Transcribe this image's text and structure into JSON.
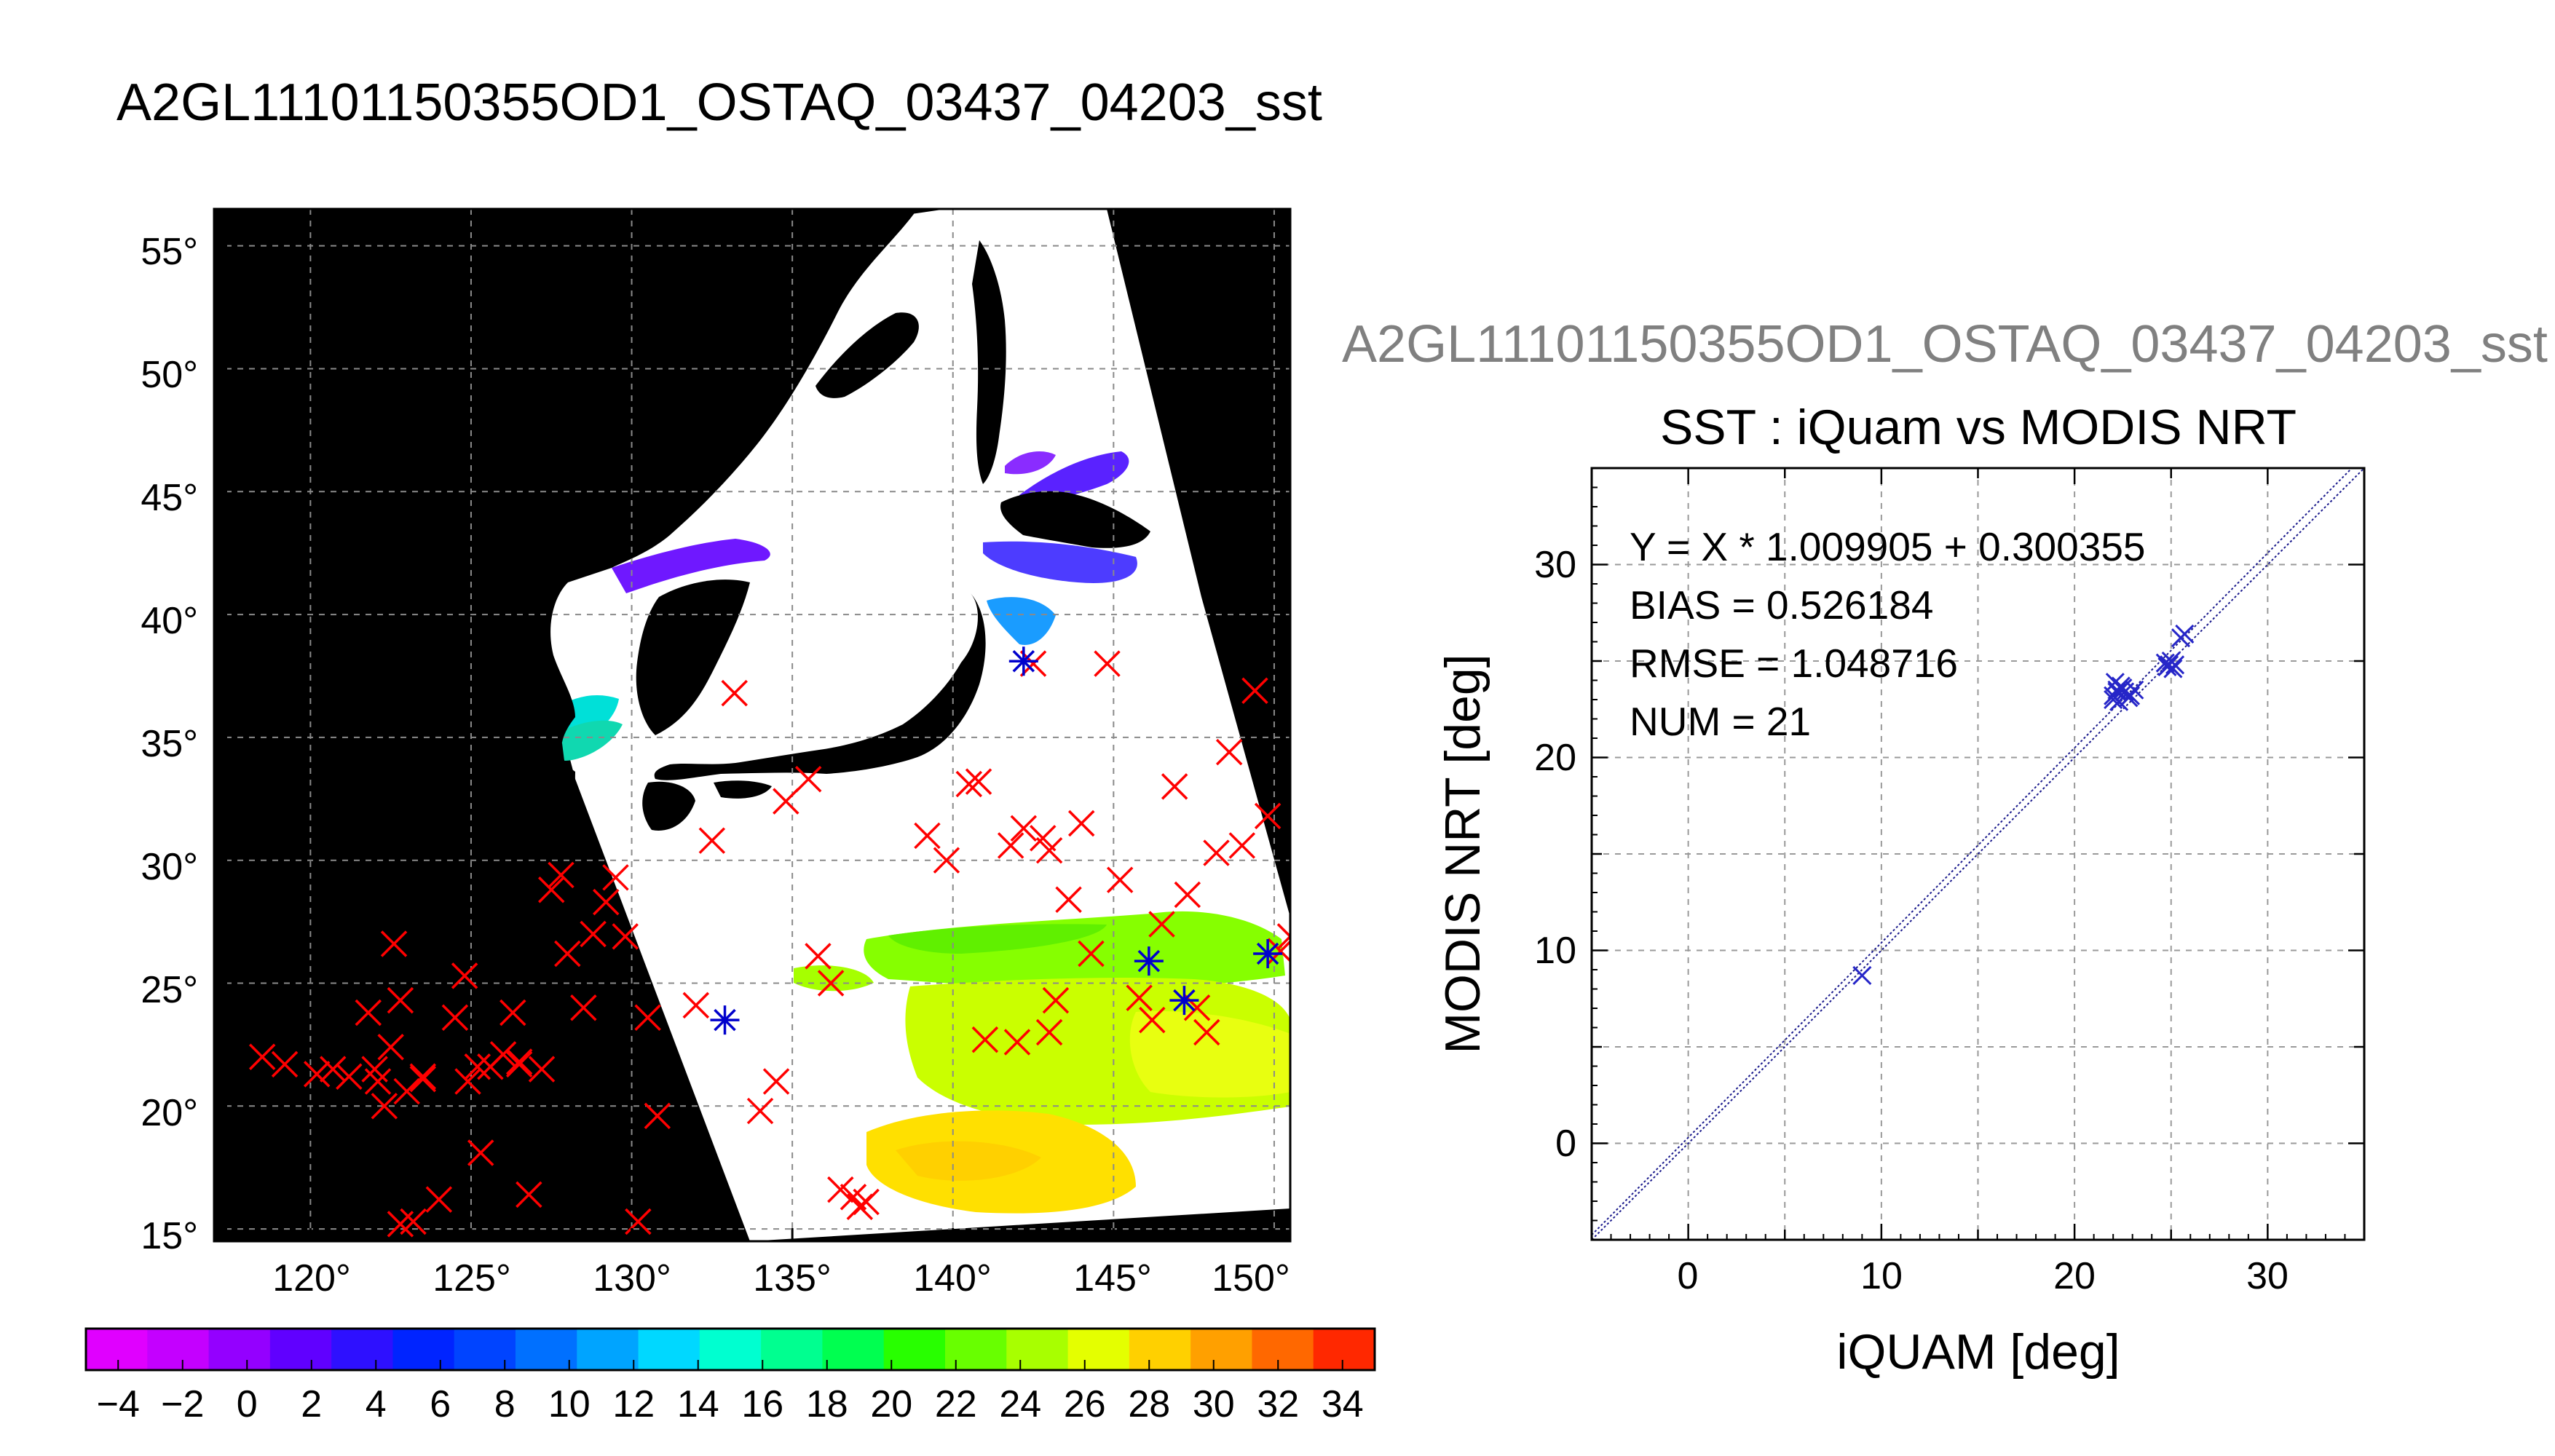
{
  "page_title": "A2GL11101150355OD1_OSTAQ_03437_04203_sst",
  "map": {
    "lat_ticks": [
      "55°",
      "50°",
      "45°",
      "40°",
      "35°",
      "30°",
      "25°",
      "20°",
      "15°"
    ],
    "lon_ticks": [
      "120°",
      "125°",
      "130°",
      "135°",
      "140°",
      "145°",
      "150°"
    ],
    "lat_range": [
      14.5,
      56.5
    ],
    "lon_range": [
      117,
      150.5
    ],
    "colorbar": {
      "tick_labels": [
        "−4",
        "−2",
        "0",
        "2",
        "4",
        "6",
        "8",
        "10",
        "12",
        "14",
        "16",
        "18",
        "20",
        "22",
        "24",
        "26",
        "28",
        "30",
        "32",
        "34"
      ],
      "range": [
        -5,
        35
      ],
      "colors": [
        "#e000ff",
        "#c400ff",
        "#9400ff",
        "#6000ff",
        "#2e10ff",
        "#0024ff",
        "#0044ff",
        "#0070ff",
        "#00a4ff",
        "#00d8ff",
        "#00ffd0",
        "#00ff90",
        "#00ff50",
        "#28ff00",
        "#68ff00",
        "#a8ff00",
        "#e4ff00",
        "#ffd000",
        "#ffa000",
        "#ff6800",
        "#ff2800"
      ]
    },
    "colors": {
      "land": "#000000",
      "cloud": "#ffffff",
      "marker_iquam": "#ff0000",
      "marker_matched": "#0000cc"
    }
  },
  "scatter": {
    "suptitle": "A2GL11101150355OD1_OSTAQ_03437_04203_sst",
    "title": "SST : iQuam vs MODIS NRT",
    "stats": [
      "Y = X * 1.009905 + 0.300355",
      "BIAS = 0.526184",
      "RMSE = 1.048716",
      "NUM = 21"
    ],
    "xlabel": "iQUAM [deg]",
    "ylabel": "MODIS NRT [deg]",
    "x_ticks": [
      "0",
      "10",
      "20",
      "30"
    ],
    "y_ticks": [
      "0",
      "10",
      "20",
      "30"
    ]
  },
  "chart_data": [
    {
      "type": "scatter",
      "title": "SST : iQuam vs MODIS NRT",
      "xlabel": "iQUAM [deg]",
      "ylabel": "MODIS NRT [deg]",
      "xlim": [
        -5,
        35
      ],
      "ylim": [
        -5,
        35
      ],
      "grid": true,
      "series": [
        {
          "x": [
            9.0,
            22.0,
            22.2,
            22.4,
            22.1,
            22.6,
            22.3,
            22.0,
            22.5,
            23.1,
            22.9,
            24.8,
            25.0,
            24.9,
            25.1,
            25.7,
            22.2,
            22.8,
            24.7,
            25.2,
            25.5
          ],
          "y": [
            8.7,
            23.2,
            23.5,
            23.7,
            23.9,
            23.4,
            22.9,
            23.0,
            23.6,
            23.5,
            23.2,
            24.7,
            25.0,
            24.8,
            24.6,
            26.4,
            23.4,
            23.1,
            24.9,
            24.8,
            26.2
          ]
        }
      ],
      "fit": {
        "slope": 1.009905,
        "intercept": 0.300355
      },
      "stats": {
        "bias": 0.526184,
        "rmse": 1.048716,
        "num": 21
      }
    },
    {
      "type": "scatter",
      "title": "A2GL11101150355OD1_OSTAQ_03437_04203_sst",
      "xlim": [
        117,
        150.5
      ],
      "ylim": [
        14.5,
        56.5
      ],
      "grid": true,
      "series": [
        {
          "marker": "x",
          "color": "#ff0000",
          "lon": [
            118.5,
            119.2,
            120.2,
            120.7,
            121.8,
            122.1,
            122.3,
            122.5,
            122.6,
            122.8,
            123.0,
            123.5,
            124.0,
            124.5,
            124.8,
            124.9,
            125.3,
            125.6,
            126.0,
            126.3,
            126.5,
            126.8,
            127.2,
            127.5,
            127.8,
            128.0,
            128.5,
            128.8,
            129.2,
            129.5,
            129.8,
            130.2,
            130.5,
            130.8,
            121.2,
            122.8,
            123.2,
            125.2,
            126.5,
            122.0,
            123.5,
            132.0,
            132.5,
            133.2,
            134.0,
            134.8,
            134.5,
            135.5,
            135.8,
            136.2,
            136.5,
            136.9,
            137.1,
            137.3,
            139.2,
            139.8,
            140.5,
            140.8,
            141.0,
            141.8,
            142.2,
            142.5,
            142.8,
            143.0,
            143.2,
            143.6,
            144.0,
            144.3,
            144.8,
            145.2,
            145.8,
            146.2,
            146.5,
            146.9,
            147.3,
            147.6,
            147.9,
            148.2,
            148.6,
            149.0,
            149.4,
            149.8,
            150.2,
            150.5,
            142.0,
            143.0
          ],
          "lat": [
            22.0,
            21.7,
            21.3,
            21.5,
            23.8,
            21.0,
            20.0,
            22.4,
            26.6,
            24.3,
            20.6,
            21.2,
            16.2,
            23.6,
            25.3,
            21.0,
            18.1,
            21.6,
            22.1,
            23.8,
            21.8,
            16.4,
            21.5,
            28.8,
            29.4,
            26.2,
            24.0,
            27.0,
            28.3,
            29.3,
            26.9,
            15.3,
            23.6,
            19.6,
            21.2,
            15.2,
            15.3,
            21.6,
            21.7,
            21.5,
            21.1,
            24.1,
            30.8,
            36.8,
            19.8,
            32.4,
            21.0,
            33.3,
            26.1,
            25.0,
            16.6,
            16.3,
            15.9,
            16.1,
            31.0,
            30.0,
            33.1,
            33.2,
            22.7,
            30.6,
            31.3,
            38.0,
            30.9,
            30.4,
            24.3,
            28.4,
            31.5,
            26.2,
            38.0,
            29.2,
            24.4,
            23.5,
            27.4,
            33.0,
            28.6,
            24.0,
            23.0,
            30.3,
            34.4,
            30.6,
            36.9,
            31.8,
            26.3,
            26.9,
            22.6,
            23.0
          ]
        },
        {
          "marker": "asterisk",
          "color": "#0000cc",
          "lon": [
            132.9,
            142.2,
            146.1,
            147.2,
            149.8
          ],
          "lat": [
            23.5,
            38.1,
            25.9,
            24.3,
            26.2
          ]
        }
      ]
    }
  ]
}
